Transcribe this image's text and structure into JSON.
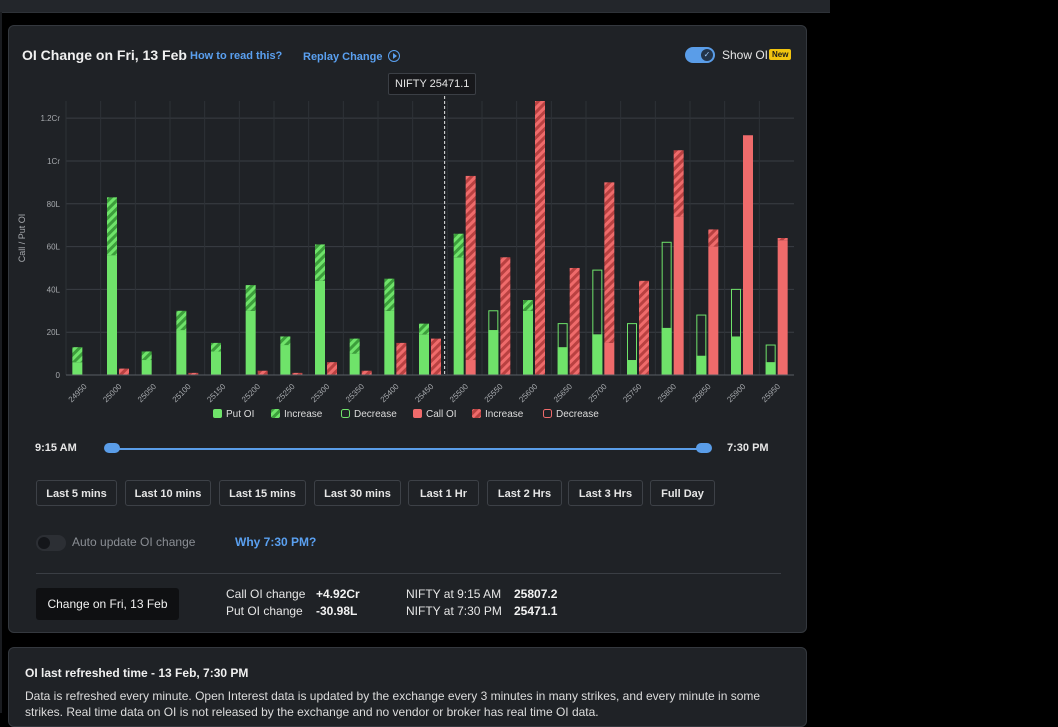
{
  "header": {
    "title": "OI Change on Fri, 13 Feb",
    "how_to_read": "How to read this?",
    "replay_change": "Replay Change",
    "show_oi": "Show OI",
    "new_badge": "New"
  },
  "tooltip": "NIFTY 25471.1",
  "chart_data": {
    "type": "bar",
    "ylabel": "Call / Put OI",
    "ylim": [
      0,
      1.28
    ],
    "y_unit": "Cr",
    "y_ticks": [
      0,
      0.2,
      0.4,
      0.6,
      0.8,
      1.0,
      1.2
    ],
    "y_tick_labels": [
      "0",
      "20L",
      "40L",
      "60L",
      "80L",
      "1Cr",
      "1.2Cr"
    ],
    "categories": [
      "24950",
      "25000",
      "25050",
      "25100",
      "25150",
      "25200",
      "25250",
      "25300",
      "25350",
      "25400",
      "25450",
      "25500",
      "25550",
      "25600",
      "25650",
      "25700",
      "25750",
      "25800",
      "25850",
      "25900",
      "25950"
    ],
    "series": [
      {
        "name": "Put OI (current)",
        "values": [
          0.13,
          0.83,
          0.11,
          0.3,
          0.15,
          0.42,
          0.18,
          0.61,
          0.17,
          0.45,
          0.24,
          0.66,
          0.21,
          0.35,
          0.13,
          0.19,
          0.07,
          0.22,
          0.09,
          0.18,
          0.06
        ]
      },
      {
        "name": "Put OI Increase",
        "values": [
          0.07,
          0.27,
          0.04,
          0.09,
          0.04,
          0.12,
          0.04,
          0.17,
          0.07,
          0.15,
          0.05,
          0.11,
          0.0,
          0.05,
          0.0,
          0.0,
          0.0,
          0.0,
          0.0,
          0.0,
          0.0
        ]
      },
      {
        "name": "Put OI Decrease",
        "values": [
          0,
          0,
          0,
          0,
          0,
          0,
          0,
          0,
          0,
          0,
          0,
          0,
          0.09,
          0,
          0.11,
          0.3,
          0.17,
          0.4,
          0.19,
          0.22,
          0.08
        ]
      },
      {
        "name": "Call OI (current)",
        "values": [
          0,
          0.03,
          0,
          0.01,
          0,
          0.02,
          0.01,
          0.06,
          0.02,
          0.15,
          0.17,
          0.93,
          0.55,
          1.28,
          0.5,
          0.9,
          0.44,
          1.05,
          0.68,
          1.12,
          0.64
        ]
      },
      {
        "name": "Call OI Increase",
        "values": [
          0,
          0.03,
          0,
          0.01,
          0,
          0.02,
          0.01,
          0.06,
          0.02,
          0.15,
          0.17,
          0.86,
          0.55,
          1.28,
          0.5,
          0.75,
          0.44,
          0.31,
          0.08,
          0,
          0.01
        ]
      },
      {
        "name": "Call OI Decrease",
        "values": [
          0,
          0,
          0,
          0,
          0,
          0,
          0,
          0,
          0,
          0,
          0,
          0,
          0,
          0,
          0,
          0,
          0,
          0,
          0,
          0,
          0
        ]
      }
    ],
    "spot_marker": {
      "label": "NIFTY 25471.1",
      "x_value": 25471.1
    },
    "legend": [
      "Put OI",
      "Increase",
      "Decrease",
      "Call OI",
      "Increase",
      "Decrease"
    ],
    "legend_position": "bottom"
  },
  "colors": {
    "put": "#6fe36a",
    "call": "#ef6b6b",
    "put_stripe": "#3c9e3b",
    "call_stripe": "#b94141",
    "accent": "#5aa0f0"
  },
  "slider": {
    "start": "9:15 AM",
    "end": "7:30 PM"
  },
  "range_buttons": [
    "Last 5 mins",
    "Last 10 mins",
    "Last 15 mins",
    "Last 30 mins",
    "Last 1 Hr",
    "Last 2 Hrs",
    "Last 3 Hrs",
    "Full Day"
  ],
  "auto_update": {
    "label": "Auto update OI change",
    "link": "Why 7:30 PM?"
  },
  "summary": {
    "button": "Change on Fri, 13 Feb",
    "call_label": "Call OI change",
    "call_value": "+4.92Cr",
    "put_label": "Put OI change",
    "put_value": "-30.98L",
    "nifty_start_label": "NIFTY at 9:15 AM",
    "nifty_start_value": "25807.2",
    "nifty_end_label": "NIFTY at 7:30 PM",
    "nifty_end_value": "25471.1"
  },
  "refresh": {
    "title": "OI last refreshed time - 13 Feb, 7:30 PM",
    "text": "Data is refreshed every minute. Open Interest data is updated by the exchange every 3 minutes in many strikes, and every minute in some strikes. Real time data on OI is not released by the exchange and no vendor or broker has real time OI data."
  }
}
